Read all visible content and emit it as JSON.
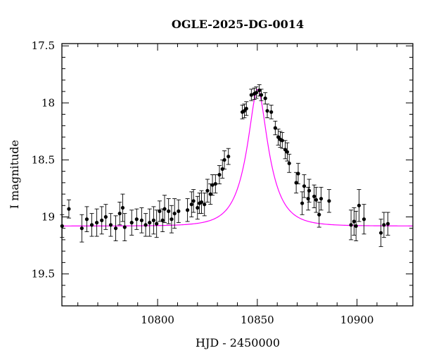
{
  "chart_data": {
    "type": "scatter",
    "title": "OGLE-2025-DG-0014",
    "xlabel": "HJD - 2450000",
    "ylabel": "I magnitude",
    "xlim": [
      10752,
      10928
    ],
    "ylim": [
      19.78,
      17.48
    ],
    "y_inverted": true,
    "xticks": [
      "10800",
      "10850",
      "10900"
    ],
    "yticks": [
      "17.5",
      "18",
      "18.5",
      "19",
      "19.5"
    ],
    "grid": false,
    "legend": "none",
    "colors": {
      "points": "#000000",
      "model": "#ff00ff",
      "errorbars": "#000000"
    },
    "series": [
      {
        "type": "scatter_errorbars",
        "points": [
          [
            10752.1,
            19.08,
            0.1
          ],
          [
            10755.5,
            18.93,
            0.08
          ],
          [
            10762.0,
            19.1,
            0.12
          ],
          [
            10764.5,
            19.02,
            0.11
          ],
          [
            10767.0,
            19.07,
            0.1
          ],
          [
            10769.5,
            19.05,
            0.12
          ],
          [
            10772.0,
            19.03,
            0.12
          ],
          [
            10774.0,
            19.0,
            0.11
          ],
          [
            10776.5,
            19.07,
            0.1
          ],
          [
            10779.0,
            19.1,
            0.11
          ],
          [
            10781.0,
            18.97,
            0.1
          ],
          [
            10782.5,
            18.92,
            0.12
          ],
          [
            10783.5,
            19.09,
            0.12
          ],
          [
            10787.0,
            19.05,
            0.11
          ],
          [
            10789.5,
            19.02,
            0.09
          ],
          [
            10792.0,
            19.03,
            0.11
          ],
          [
            10794.0,
            19.07,
            0.1
          ],
          [
            10796.0,
            19.05,
            0.12
          ],
          [
            10798.0,
            19.03,
            0.12
          ],
          [
            10799.5,
            19.06,
            0.12
          ],
          [
            10801.0,
            18.95,
            0.09
          ],
          [
            10802.5,
            19.03,
            0.1
          ],
          [
            10803.5,
            18.93,
            0.12
          ],
          [
            10805.5,
            18.95,
            0.11
          ],
          [
            10807.0,
            19.02,
            0.12
          ],
          [
            10808.5,
            18.97,
            0.13
          ],
          [
            10810.5,
            18.95,
            0.1
          ],
          [
            10815.0,
            18.94,
            0.1
          ],
          [
            10817.0,
            18.89,
            0.11
          ],
          [
            10818.0,
            18.86,
            0.1
          ],
          [
            10820.0,
            18.92,
            0.1
          ],
          [
            10821.0,
            18.88,
            0.09
          ],
          [
            10822.0,
            18.87,
            0.1
          ],
          [
            10823.5,
            18.89,
            0.1
          ],
          [
            10825.0,
            18.77,
            0.1
          ],
          [
            10826.5,
            18.8,
            0.09
          ],
          [
            10827.5,
            18.72,
            0.09
          ],
          [
            10829.0,
            18.71,
            0.08
          ],
          [
            10831.0,
            18.63,
            0.08
          ],
          [
            10832.5,
            18.58,
            0.08
          ],
          [
            10833.5,
            18.5,
            0.08
          ],
          [
            10835.5,
            18.47,
            0.07
          ],
          [
            10842.5,
            18.08,
            0.06
          ],
          [
            10843.5,
            18.07,
            0.06
          ],
          [
            10844.5,
            18.05,
            0.06
          ],
          [
            10847.0,
            17.93,
            0.05
          ],
          [
            10848.5,
            17.92,
            0.05
          ],
          [
            10849.5,
            17.91,
            0.05
          ],
          [
            10851.0,
            17.89,
            0.05
          ],
          [
            10852.0,
            17.93,
            0.05
          ],
          [
            10854.0,
            17.96,
            0.05
          ],
          [
            10855.0,
            18.07,
            0.06
          ],
          [
            10857.0,
            18.08,
            0.06
          ],
          [
            10859.0,
            18.22,
            0.06
          ],
          [
            10860.5,
            18.3,
            0.07
          ],
          [
            10861.5,
            18.32,
            0.07
          ],
          [
            10862.5,
            18.33,
            0.07
          ],
          [
            10864.0,
            18.41,
            0.08
          ],
          [
            10865.0,
            18.43,
            0.08
          ],
          [
            10866.0,
            18.53,
            0.08
          ],
          [
            10869.5,
            18.7,
            0.09
          ],
          [
            10870.5,
            18.62,
            0.09
          ],
          [
            10872.5,
            18.88,
            0.1
          ],
          [
            10873.5,
            18.73,
            0.1
          ],
          [
            10875.5,
            18.84,
            0.1
          ],
          [
            10876.0,
            18.77,
            0.1
          ],
          [
            10878.5,
            18.82,
            0.1
          ],
          [
            10879.5,
            18.85,
            0.11
          ],
          [
            10881.0,
            18.98,
            0.11
          ],
          [
            10882.0,
            18.84,
            0.1
          ],
          [
            10886.0,
            18.86,
            0.1
          ],
          [
            10897.0,
            19.07,
            0.13
          ],
          [
            10898.5,
            19.04,
            0.12
          ],
          [
            10899.5,
            19.08,
            0.13
          ],
          [
            10901.0,
            18.9,
            0.14
          ],
          [
            10903.5,
            19.02,
            0.13
          ],
          [
            10912.0,
            19.14,
            0.12
          ],
          [
            10913.5,
            19.07,
            0.11
          ],
          [
            10915.5,
            19.06,
            0.1
          ]
        ]
      },
      {
        "type": "model_curve",
        "t0": 10850.2,
        "baseline_mag": 19.08,
        "peak_mag": 17.88,
        "tE": 11
      }
    ]
  }
}
